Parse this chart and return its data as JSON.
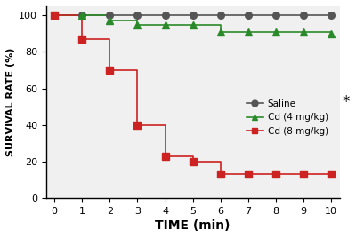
{
  "saline_x": [
    0,
    1,
    2,
    3,
    4,
    5,
    6,
    7,
    8,
    9,
    10
  ],
  "saline_y": [
    100,
    100,
    100,
    100,
    100,
    100,
    100,
    100,
    100,
    100,
    100
  ],
  "cd4_x": [
    0,
    1,
    2,
    3,
    4,
    5,
    6,
    7,
    8,
    9,
    10
  ],
  "cd4_y": [
    100,
    100,
    97,
    95,
    95,
    95,
    91,
    91,
    91,
    91,
    90
  ],
  "cd8_x": [
    0,
    1,
    2,
    3,
    4,
    5,
    6,
    7,
    8,
    9,
    10
  ],
  "cd8_y": [
    100,
    87,
    70,
    40,
    23,
    20,
    13,
    13,
    13,
    13,
    13
  ],
  "saline_color": "#555555",
  "cd4_color": "#2a8a2a",
  "cd8_color": "#cc2222",
  "xlabel": "TIME (min)",
  "ylabel": "SURVIVAL RATE (%)",
  "legend_labels": [
    "Saline",
    "Cd (4 mg/kg)",
    "Cd (8 mg/kg)"
  ],
  "xlim": [
    -0.3,
    10.3
  ],
  "ylim": [
    0,
    105
  ],
  "xticks": [
    0,
    1,
    2,
    3,
    4,
    5,
    6,
    7,
    8,
    9,
    10
  ],
  "yticks": [
    0,
    20,
    40,
    60,
    80,
    100
  ],
  "asterisk": "*",
  "bg_color": "#f0f0f0"
}
